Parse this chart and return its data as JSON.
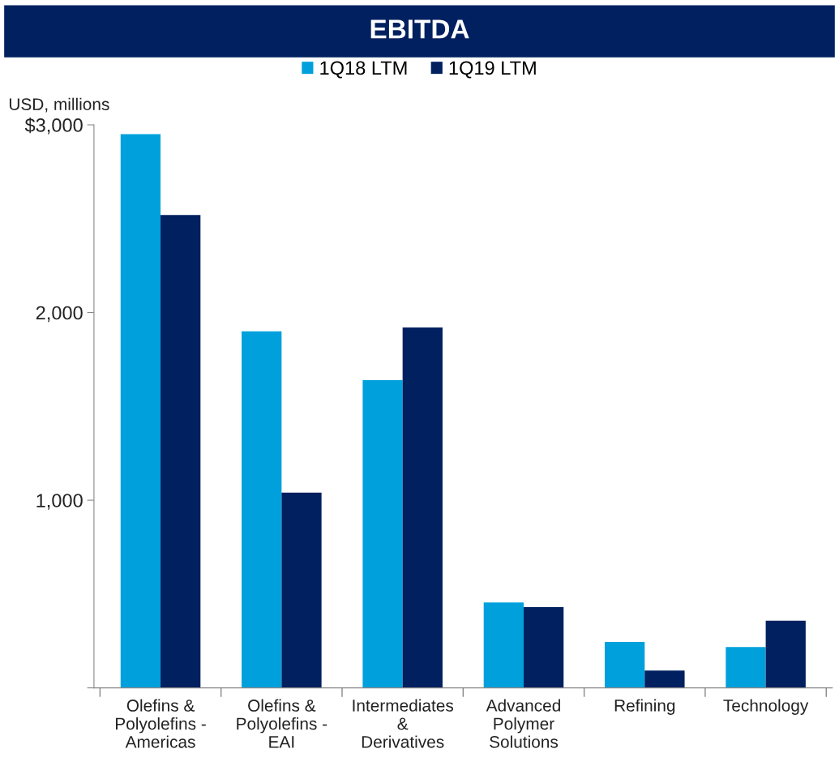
{
  "chart_data": {
    "type": "bar",
    "title": "EBITDA",
    "ylabel": "USD, millions",
    "categories": [
      "Olefins &\nPolyolefins -\nAmericas",
      "Olefins &\nPolyolefins -\nEAI",
      "Intermediates\n&\nDerivatives",
      "Advanced\nPolymer\nSolutions",
      "Refining",
      "Technology"
    ],
    "series": [
      {
        "name": "1Q18 LTM",
        "color": "#00a0dc",
        "values": [
          2950,
          1900,
          1640,
          455,
          245,
          218
        ]
      },
      {
        "name": "1Q19 LTM",
        "color": "#002060",
        "values": [
          2520,
          1040,
          1920,
          430,
          92,
          358
        ]
      }
    ],
    "ylim": [
      0,
      3000
    ],
    "yticks": [
      {
        "value": 0,
        "label": null
      },
      {
        "value": 1000,
        "label": "1,000"
      },
      {
        "value": 2000,
        "label": "2,000"
      },
      {
        "value": 3000,
        "label": "$3,000"
      }
    ],
    "grid": false,
    "legend": "top"
  }
}
